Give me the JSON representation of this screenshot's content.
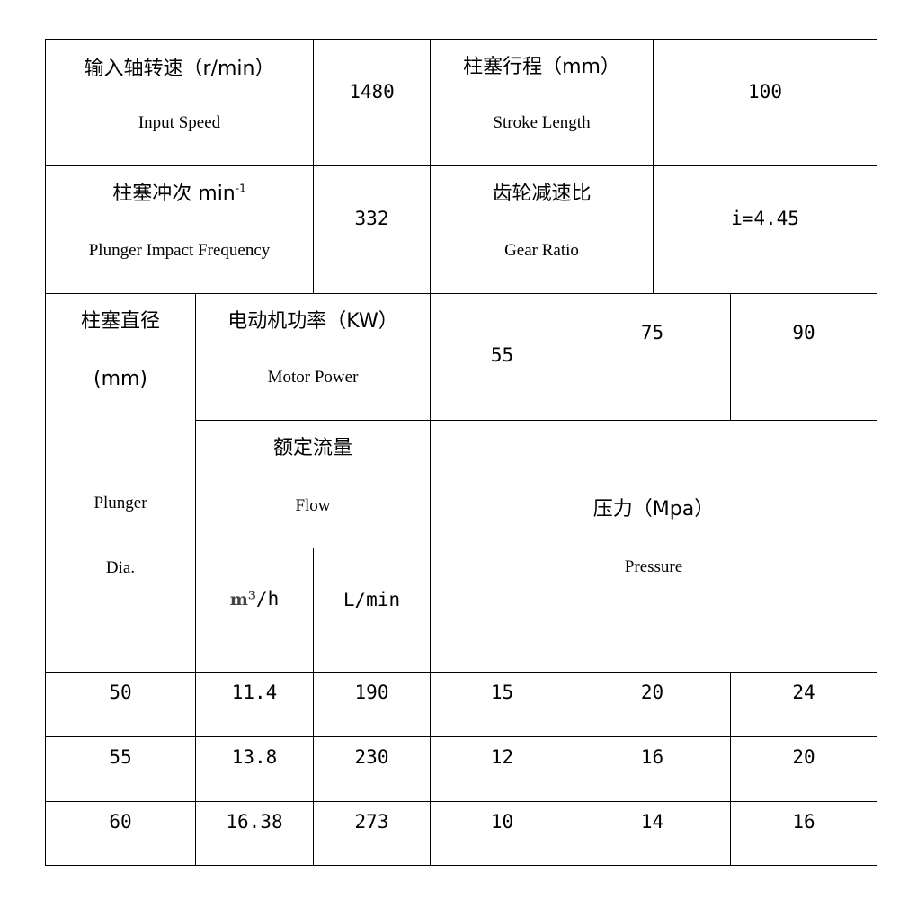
{
  "header": {
    "input_speed_zh": "输入轴转速（r/min）",
    "input_speed_en": "Input Speed",
    "input_speed_value": "1480",
    "stroke_zh": "柱塞行程（mm）",
    "stroke_en": "Stroke Length",
    "stroke_value": "100",
    "frequency_zh": "柱塞冲次 min",
    "frequency_sup": "-1",
    "frequency_en": "Plunger Impact Frequency",
    "frequency_value": "332",
    "gear_zh": "齿轮减速比",
    "gear_en": "Gear Ratio",
    "gear_value": "i=4.45",
    "plunger_zh": "柱塞直径",
    "plunger_unit": "(mm)",
    "plunger_en1": "Plunger",
    "plunger_en2": "Dia.",
    "motor_zh": "电动机功率（KW）",
    "motor_en": "Motor Power",
    "motor_values": [
      "55",
      "75",
      "90"
    ],
    "flow_zh": "额定流量",
    "flow_en": "Flow",
    "pressure_zh": "压力（Mpa）",
    "pressure_en": "Pressure",
    "flow_unit_m3_base": "m",
    "flow_unit_m3_sup": "3",
    "flow_unit_m3_tail": "/h",
    "flow_unit_lmin": "L/min"
  },
  "rows": [
    [
      "50",
      "11.4",
      "190",
      "15",
      "20",
      "24"
    ],
    [
      "55",
      "13.8",
      "230",
      "12",
      "16",
      "20"
    ],
    [
      "60",
      "16.38",
      "273",
      "10",
      "14",
      "16"
    ]
  ]
}
